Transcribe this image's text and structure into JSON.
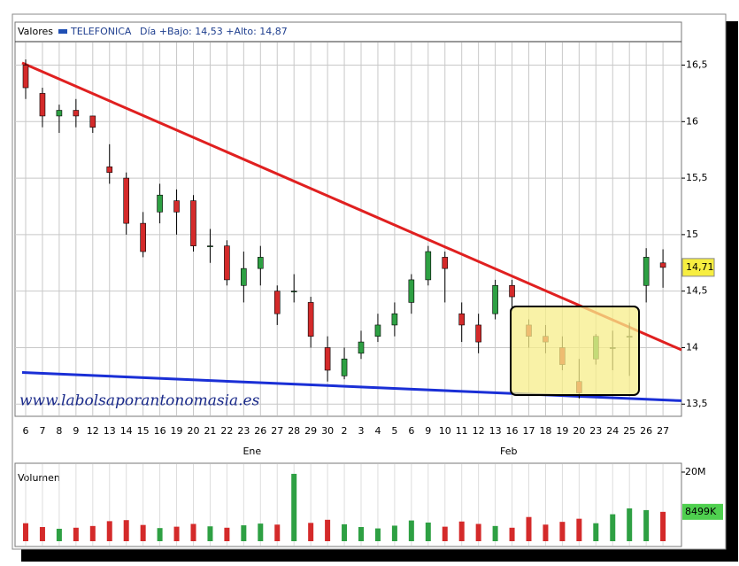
{
  "chart_data": {
    "type": "candlestick",
    "header": {
      "label": "Valores",
      "series_name": "TELEFONICA",
      "day_range": "Día +Bajo: 14,53 +Alto: 14,87"
    },
    "color": "#1f4fb4",
    "categories": [
      "6",
      "7",
      "8",
      "9",
      "12",
      "13",
      "14",
      "15",
      "16",
      "19",
      "20",
      "21",
      "22",
      "23",
      "26",
      "27",
      "28",
      "29",
      "30",
      "2",
      "3",
      "4",
      "5",
      "6",
      "9",
      "10",
      "11",
      "12",
      "13",
      "16",
      "17",
      "18",
      "19",
      "20",
      "23",
      "24",
      "25",
      "26",
      "27"
    ],
    "month_labels": [
      "Ene",
      "Feb"
    ],
    "open": [
      16.5,
      16.25,
      16.05,
      16.1,
      16.05,
      15.6,
      15.5,
      15.1,
      15.2,
      15.3,
      15.3,
      14.9,
      14.9,
      14.55,
      14.7,
      14.5,
      14.5,
      14.4,
      14.0,
      13.75,
      13.95,
      14.1,
      14.2,
      14.4,
      14.6,
      14.8,
      14.3,
      14.2,
      14.3,
      14.55,
      14.2,
      14.1,
      14.0,
      13.7,
      13.9,
      14.0,
      14.1,
      14.55,
      14.75
    ],
    "high": [
      16.55,
      16.3,
      16.15,
      16.2,
      16.05,
      15.8,
      15.55,
      15.2,
      15.45,
      15.4,
      15.35,
      15.05,
      14.95,
      14.85,
      14.9,
      14.55,
      14.65,
      14.45,
      14.1,
      14.0,
      14.15,
      14.3,
      14.4,
      14.65,
      14.9,
      14.85,
      14.4,
      14.3,
      14.6,
      14.6,
      14.25,
      14.2,
      14.1,
      13.9,
      14.12,
      14.15,
      14.22,
      14.88,
      14.87
    ],
    "low": [
      16.2,
      15.95,
      15.9,
      15.95,
      15.9,
      15.45,
      15.0,
      14.8,
      15.1,
      15.0,
      14.85,
      14.75,
      14.55,
      14.4,
      14.55,
      14.2,
      14.4,
      14.0,
      13.7,
      13.72,
      13.9,
      14.05,
      14.1,
      14.3,
      14.55,
      14.4,
      14.05,
      13.95,
      14.25,
      14.35,
      14.0,
      13.95,
      13.8,
      13.55,
      13.85,
      13.8,
      13.75,
      14.4,
      14.53
    ],
    "close": [
      16.3,
      16.05,
      16.1,
      16.05,
      15.95,
      15.55,
      15.1,
      14.85,
      15.35,
      15.2,
      14.9,
      14.9,
      14.6,
      14.7,
      14.8,
      14.3,
      14.5,
      14.1,
      13.8,
      13.9,
      14.05,
      14.2,
      14.3,
      14.6,
      14.85,
      14.7,
      14.2,
      14.05,
      14.55,
      14.45,
      14.1,
      14.05,
      13.85,
      13.6,
      14.1,
      14.0,
      14.1,
      14.8,
      14.71
    ],
    "ylim": [
      13.4,
      16.7
    ],
    "yticks": [
      {
        "value": 13.5,
        "label": "13,5"
      },
      {
        "value": 14,
        "label": "14"
      },
      {
        "value": 14.5,
        "label": "14,5"
      },
      {
        "value": 15,
        "label": "15"
      },
      {
        "value": 15.5,
        "label": "15,5"
      },
      {
        "value": 16,
        "label": "16"
      },
      {
        "value": 16.5,
        "label": "16,5"
      }
    ],
    "last_price": {
      "value": 14.71,
      "label": "14,71"
    },
    "trendlines": [
      {
        "color": "#e02020",
        "start": 16.52,
        "end": 13.98
      },
      {
        "color": "#1a2fd6",
        "start": 13.78,
        "end": 13.53
      }
    ],
    "watermark": "www.labolsaporantonomasia.es",
    "grid": true,
    "volume": {
      "label": "Volumen",
      "values": [
        5200000,
        4100000,
        3600000,
        3900000,
        4400000,
        5800000,
        6100000,
        4700000,
        3800000,
        4200000,
        5000000,
        4300000,
        3900000,
        4600000,
        5100000,
        4800000,
        19500000,
        5300000,
        6200000,
        4900000,
        4100000,
        3700000,
        4500000,
        6000000,
        5400000,
        4200000,
        5700000,
        5000000,
        4400000,
        3900000,
        7000000,
        4800000,
        5600000,
        6500000,
        5200000,
        7800000,
        9500000,
        9000000,
        8499000
      ],
      "ylim": [
        0,
        20000000
      ],
      "yticks": [
        {
          "value": 20000000,
          "label": "20M"
        }
      ],
      "last": {
        "value": 8499000,
        "label": "8499K"
      }
    }
  }
}
